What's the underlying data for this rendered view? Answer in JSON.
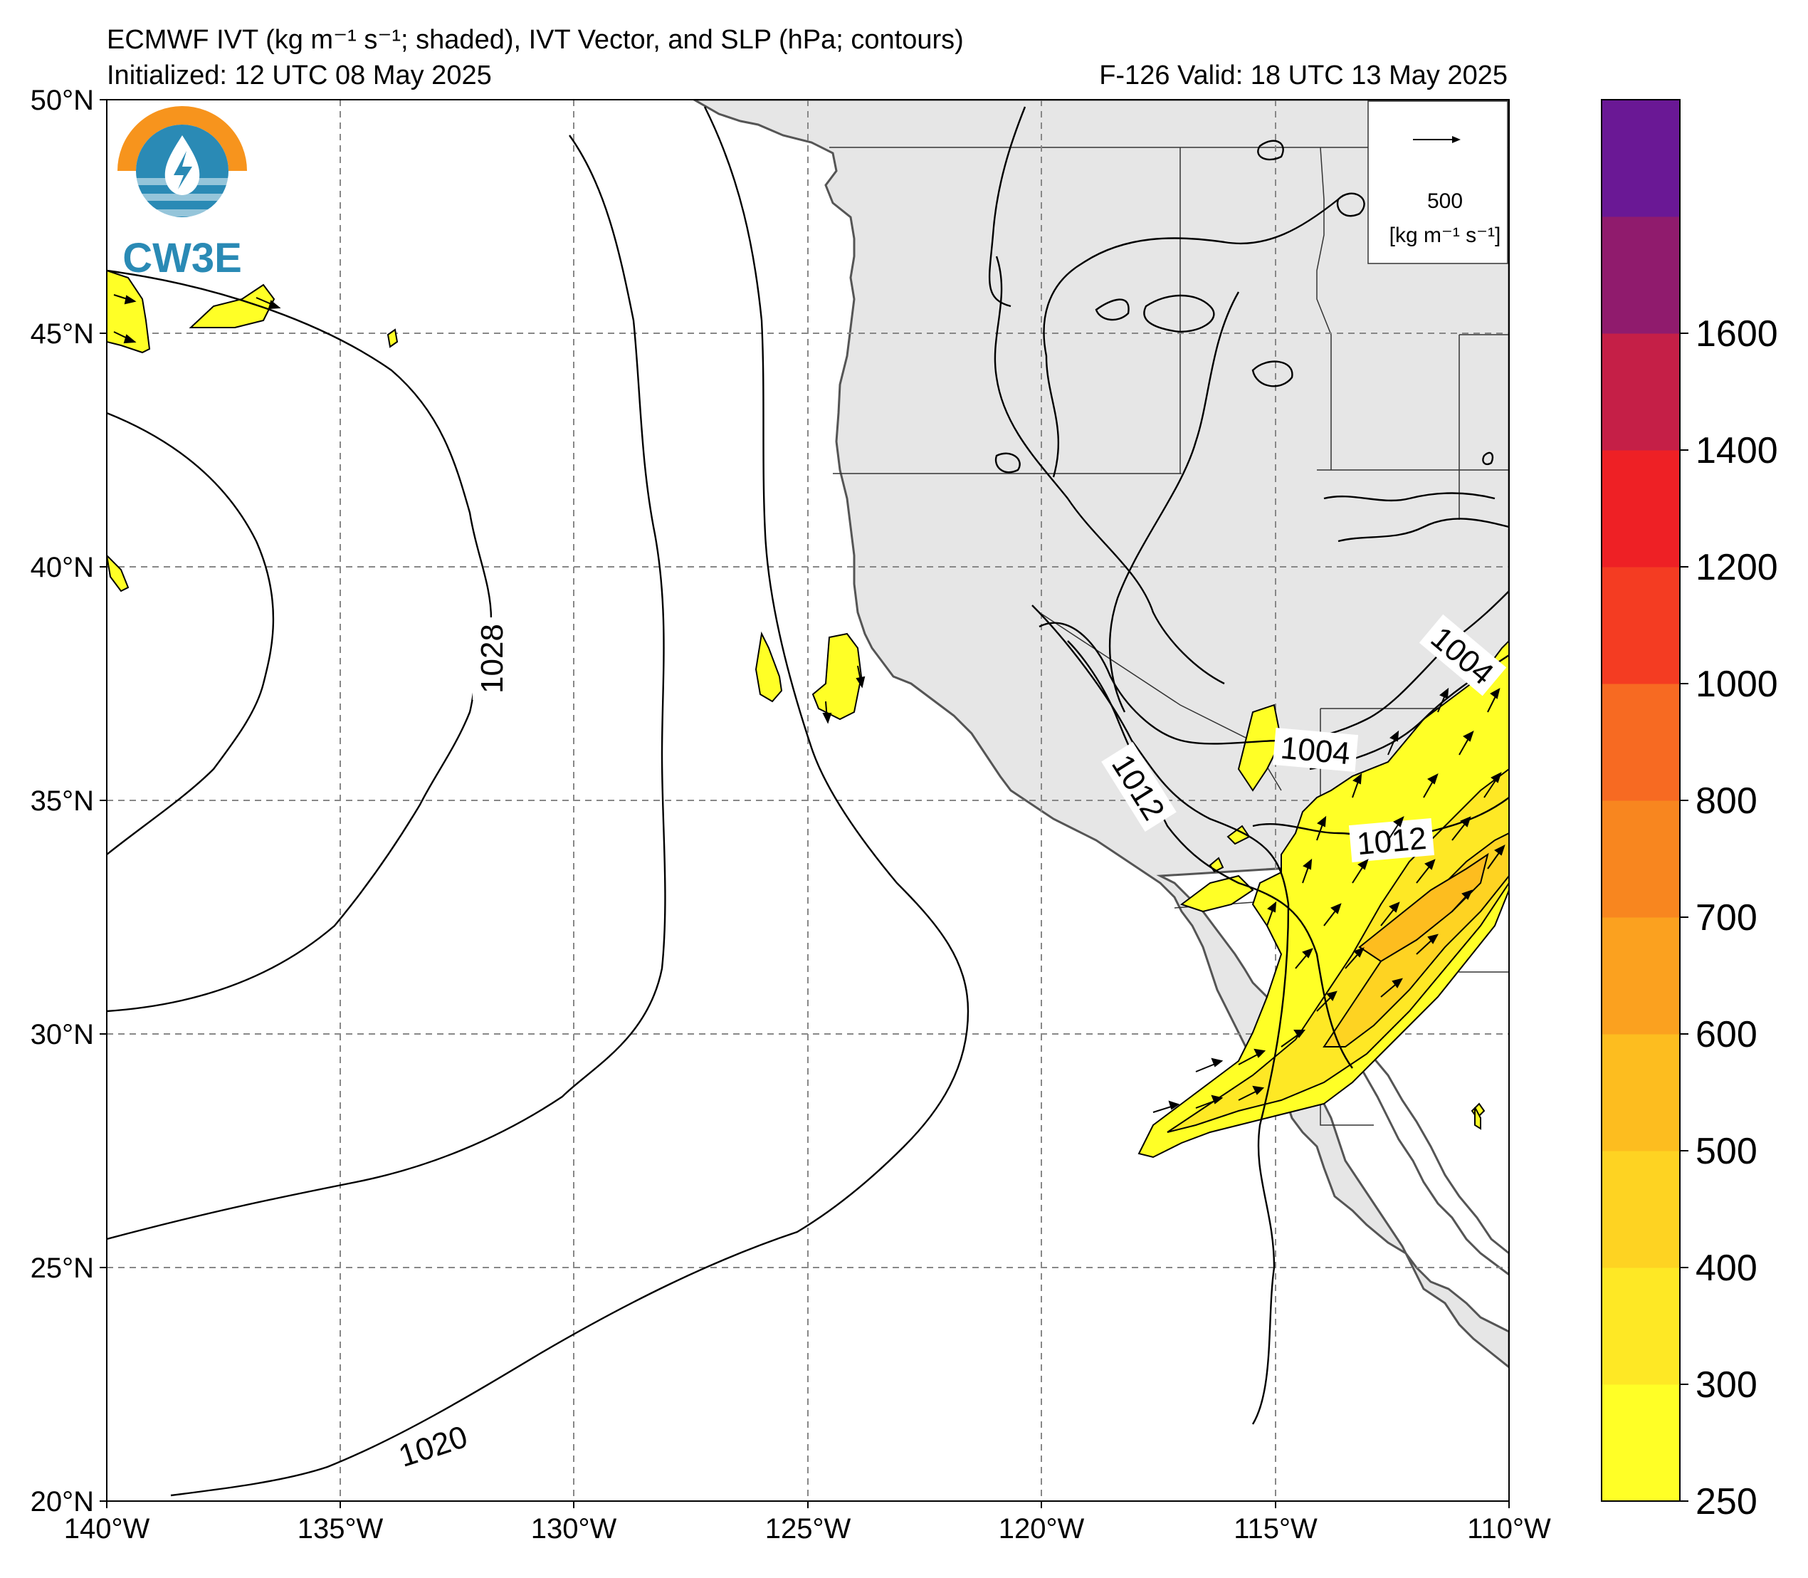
{
  "title": {
    "line1": "ECMWF IVT (kg m⁻¹ s⁻¹; shaded), IVT Vector, and SLP (hPa; contours)",
    "initialized": "Initialized: 12 UTC 08 May 2025",
    "valid": "F-126  Valid: 18 UTC 13 May 2025"
  },
  "logo": {
    "text": "CW3E"
  },
  "vector_legend": {
    "value": "500",
    "units": "[kg m⁻¹ s⁻¹]"
  },
  "map": {
    "lon_range": [
      -140,
      -110
    ],
    "lat_range": [
      20,
      50
    ],
    "lon_ticks": [
      -140,
      -135,
      -130,
      -125,
      -120,
      -115,
      -110
    ],
    "lat_ticks": [
      20,
      25,
      30,
      35,
      40,
      45,
      50
    ],
    "lon_tick_labels": [
      "140°W",
      "135°W",
      "130°W",
      "125°W",
      "120°W",
      "115°W",
      "110°W"
    ],
    "lat_tick_labels": [
      "20°N",
      "25°N",
      "30°N",
      "35°N",
      "40°N",
      "45°N",
      "50°N"
    ],
    "gridlines": true,
    "land_color": "#e6e6e6",
    "ocean_color": "#ffffff"
  },
  "contour_labels": [
    {
      "text": "1028"
    },
    {
      "text": "1020"
    },
    {
      "text": "1012"
    },
    {
      "text": "1004"
    },
    {
      "text": "1012"
    },
    {
      "text": "1004"
    }
  ],
  "colorbar": {
    "levels": [
      250,
      300,
      400,
      500,
      600,
      700,
      800,
      1000,
      1200,
      1400,
      1600
    ],
    "labels": [
      "250",
      "300",
      "400",
      "500",
      "600",
      "700",
      "800",
      "1000",
      "1200",
      "1400",
      "1600"
    ],
    "colors": [
      "#ffff26",
      "#fee825",
      "#fed322",
      "#fdbd1f",
      "#fba11f",
      "#f8861f",
      "#f76a22",
      "#f43c22",
      "#ee2025",
      "#c51f47",
      "#901b6d",
      "#6a1895"
    ]
  }
}
